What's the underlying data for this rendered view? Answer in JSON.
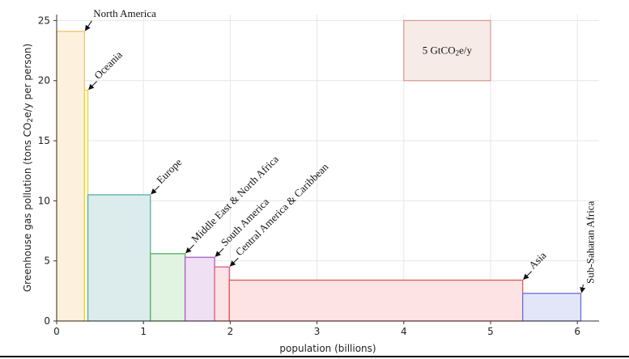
{
  "chart_data": {
    "type": "bar",
    "variant": "variable-width",
    "xlabel": "population (billions)",
    "ylabel_parts": {
      "prefix": "Greenhouse gas pollution  (tons CO",
      "sub": "2",
      "suffix": "e/y per person)"
    },
    "xlim": [
      0,
      6.25
    ],
    "ylim": [
      0,
      25.5
    ],
    "xticks": [
      0,
      1,
      2,
      3,
      4,
      5,
      6
    ],
    "yticks": [
      0,
      5,
      10,
      15,
      20,
      25
    ],
    "grid": true,
    "series": [
      {
        "label": "North America",
        "x0": 0.0,
        "x1": 0.32,
        "value": 24.1,
        "fill": "#fdf1de",
        "stroke": "#f1c36a"
      },
      {
        "label": "Oceania",
        "x0": 0.32,
        "x1": 0.36,
        "value": 19.2,
        "fill": "#fdfbe0",
        "stroke": "#e6d63c"
      },
      {
        "label": "Europe",
        "x0": 0.36,
        "x1": 1.08,
        "value": 10.5,
        "fill": "#dcecec",
        "stroke": "#5aaaa8"
      },
      {
        "label": "Middle East & North Africa",
        "x0": 1.08,
        "x1": 1.48,
        "value": 5.6,
        "fill": "#e1f3e1",
        "stroke": "#56b356"
      },
      {
        "label": "South America",
        "x0": 1.48,
        "x1": 1.82,
        "value": 5.3,
        "fill": "#efe1f3",
        "stroke": "#a65cbf"
      },
      {
        "label": "Central America & Caribbean",
        "x0": 1.82,
        "x1": 1.99,
        "value": 4.5,
        "fill": "#fbe3e7",
        "stroke": "#e25c75"
      },
      {
        "label": "Asia",
        "x0": 1.99,
        "x1": 5.37,
        "value": 3.4,
        "fill": "#fde3e3",
        "stroke": "#e05858"
      },
      {
        "label": "Sub-Saharan Africa",
        "x0": 5.37,
        "x1": 6.04,
        "value": 2.3,
        "fill": "#e3e5f9",
        "stroke": "#6a6fd8"
      }
    ],
    "legend": {
      "text_prefix": "5 GtCO",
      "text_sub": "2",
      "text_suffix": "e/y",
      "x0": 4.0,
      "x1": 5.0,
      "y0": 20.0,
      "y1": 25.0,
      "fill": "#f7ebe8",
      "stroke": "#d39a8e"
    }
  }
}
